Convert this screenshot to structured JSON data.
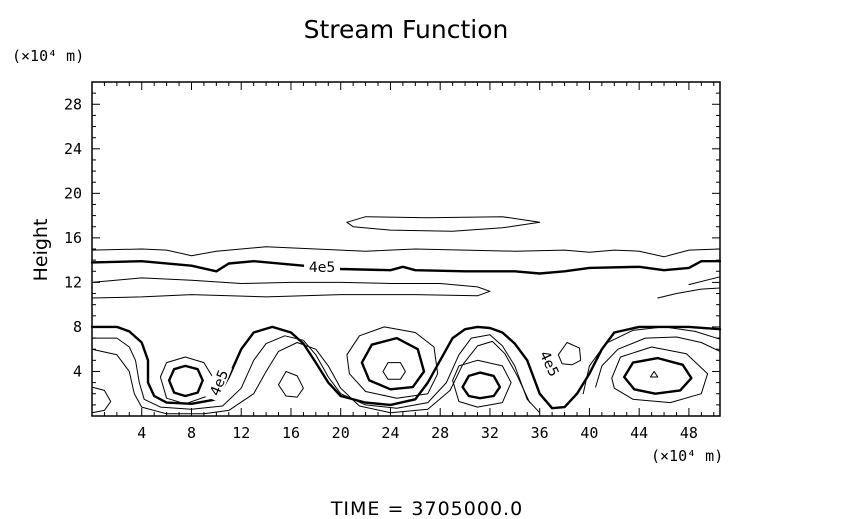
{
  "chart_data": {
    "type": "contour",
    "title": "Stream Function",
    "ylabel": "Height",
    "xlabel": "",
    "x_unit_label": "(×10⁴ m)",
    "y_unit_label": "(×10⁴ m)",
    "xlim": [
      0,
      50.5
    ],
    "ylim": [
      0,
      30
    ],
    "x_ticks": [
      4,
      8,
      12,
      16,
      20,
      24,
      28,
      32,
      36,
      40,
      44,
      48
    ],
    "y_ticks": [
      4,
      8,
      12,
      16,
      20,
      24,
      28
    ],
    "x_minor_step": 1,
    "y_minor_step": 1,
    "contour_label": "4e5",
    "footer": "TIME  =  3705000.0",
    "lines": [
      {
        "id": "band-top-15",
        "weight": "thin",
        "points": [
          [
            0,
            14.9
          ],
          [
            4,
            15.0
          ],
          [
            6,
            14.9
          ],
          [
            8,
            14.4
          ],
          [
            10,
            14.8
          ],
          [
            14,
            15.2
          ],
          [
            18,
            15.0
          ],
          [
            22,
            14.8
          ],
          [
            26,
            15.0
          ],
          [
            30,
            14.9
          ],
          [
            34,
            14.8
          ],
          [
            38,
            14.9
          ],
          [
            40,
            14.7
          ],
          [
            42,
            14.9
          ],
          [
            44,
            14.8
          ],
          [
            46,
            14.3
          ],
          [
            48,
            14.9
          ],
          [
            50.5,
            15.0
          ]
        ]
      },
      {
        "id": "bold-13.5",
        "weight": "bold",
        "points": [
          [
            0,
            13.8
          ],
          [
            4,
            13.9
          ],
          [
            8,
            13.5
          ],
          [
            10,
            13.0
          ],
          [
            11,
            13.7
          ],
          [
            13,
            13.9
          ],
          [
            16,
            13.6
          ],
          [
            18,
            13.4
          ],
          [
            20,
            13.2
          ],
          [
            24,
            13.1
          ],
          [
            25,
            13.4
          ],
          [
            26,
            13.1
          ],
          [
            30,
            13.0
          ],
          [
            34,
            13.0
          ],
          [
            36,
            12.8
          ],
          [
            38,
            13.0
          ],
          [
            40,
            13.3
          ],
          [
            44,
            13.4
          ],
          [
            46,
            13.1
          ],
          [
            48,
            13.3
          ],
          [
            49,
            13.9
          ],
          [
            50.5,
            13.9
          ]
        ]
      },
      {
        "id": "band-12",
        "weight": "thin",
        "points": [
          [
            0,
            12.0
          ],
          [
            4,
            12.4
          ],
          [
            8,
            12.2
          ],
          [
            12,
            11.9
          ],
          [
            16,
            12.0
          ],
          [
            20,
            12.0
          ],
          [
            24,
            11.9
          ],
          [
            28,
            11.9
          ],
          [
            31,
            11.6
          ],
          [
            32,
            11.2
          ],
          [
            31,
            10.8
          ],
          [
            26,
            10.9
          ],
          [
            20,
            10.9
          ],
          [
            14,
            10.7
          ],
          [
            8,
            10.9
          ],
          [
            4,
            10.7
          ],
          [
            0,
            10.6
          ]
        ]
      },
      {
        "id": "top-closed-17",
        "weight": "thin",
        "points": [
          [
            20.5,
            17.4
          ],
          [
            22,
            17.9
          ],
          [
            27,
            17.8
          ],
          [
            33,
            17.9
          ],
          [
            36,
            17.4
          ],
          [
            33,
            16.9
          ],
          [
            29,
            16.6
          ],
          [
            24,
            16.7
          ],
          [
            21,
            17.0
          ],
          [
            20.5,
            17.4
          ]
        ]
      },
      {
        "id": "right-small-11",
        "weight": "thin",
        "points": [
          [
            45.5,
            10.6
          ],
          [
            47,
            11.0
          ],
          [
            49,
            11.4
          ],
          [
            50.5,
            11.5
          ]
        ]
      },
      {
        "id": "right-small-12",
        "weight": "thin",
        "points": [
          [
            48,
            11.8
          ],
          [
            50.5,
            12.5
          ]
        ]
      },
      {
        "id": "bold-wave",
        "weight": "bold",
        "points": [
          [
            0,
            8.0
          ],
          [
            2,
            8.0
          ],
          [
            3,
            7.6
          ],
          [
            4,
            6.6
          ],
          [
            4.5,
            5.0
          ],
          [
            4.5,
            3.0
          ],
          [
            5,
            1.8
          ],
          [
            6,
            1.2
          ],
          [
            8,
            1.1
          ],
          [
            10,
            1.5
          ],
          [
            11,
            3.5
          ],
          [
            12,
            6.0
          ],
          [
            13,
            7.5
          ],
          [
            14.5,
            8.0
          ],
          [
            16,
            7.5
          ],
          [
            17,
            6.5
          ],
          [
            18,
            4.8
          ],
          [
            19,
            3.0
          ],
          [
            20,
            1.8
          ],
          [
            22,
            1.2
          ],
          [
            24,
            1.0
          ],
          [
            26,
            1.5
          ],
          [
            27,
            3.0
          ],
          [
            28,
            5.0
          ],
          [
            29,
            7.0
          ],
          [
            30,
            7.8
          ],
          [
            31,
            8.0
          ],
          [
            32,
            7.9
          ],
          [
            33,
            7.5
          ],
          [
            34,
            6.5
          ],
          [
            35,
            5.0
          ],
          [
            36,
            2.0
          ],
          [
            37,
            0.7
          ],
          [
            38,
            0.8
          ],
          [
            39,
            2.0
          ],
          [
            40,
            3.8
          ],
          [
            41,
            6.0
          ],
          [
            42,
            7.5
          ],
          [
            44,
            8.0
          ],
          [
            48,
            8.0
          ],
          [
            50.5,
            7.8
          ]
        ]
      },
      {
        "id": "thin-wave-a",
        "weight": "thin",
        "points": [
          [
            0,
            7.0
          ],
          [
            2,
            7.0
          ],
          [
            3,
            6.2
          ],
          [
            3.5,
            5.0
          ],
          [
            3.8,
            3.0
          ],
          [
            4.2,
            1.5
          ],
          [
            5.5,
            0.8
          ],
          [
            8,
            0.6
          ],
          [
            10.5,
            0.9
          ],
          [
            12,
            2.5
          ],
          [
            13,
            5.0
          ],
          [
            14,
            6.5
          ],
          [
            15.5,
            7.2
          ],
          [
            17,
            6.8
          ],
          [
            18,
            5.5
          ],
          [
            19,
            3.5
          ],
          [
            20,
            2.0
          ],
          [
            22,
            1.0
          ],
          [
            24.5,
            0.7
          ],
          [
            27,
            1.2
          ],
          [
            28.5,
            3.0
          ],
          [
            29.5,
            5.5
          ],
          [
            30.5,
            7.0
          ],
          [
            32,
            7.3
          ],
          [
            33,
            6.3
          ],
          [
            34,
            4.5
          ],
          [
            35,
            1.5
          ],
          [
            36,
            0.3
          ]
        ]
      },
      {
        "id": "thin-wave-b",
        "weight": "thin",
        "points": [
          [
            0,
            6.0
          ],
          [
            2,
            5.5
          ],
          [
            3,
            4.0
          ],
          [
            3.4,
            2.0
          ],
          [
            4,
            0.8
          ],
          [
            6,
            0.2
          ],
          [
            9,
            0.2
          ],
          [
            11,
            0.5
          ],
          [
            13,
            2.0
          ],
          [
            14,
            4.0
          ],
          [
            15,
            5.8
          ],
          [
            16.5,
            6.6
          ],
          [
            18,
            6.0
          ],
          [
            19,
            4.5
          ],
          [
            20,
            2.5
          ],
          [
            21.5,
            0.9
          ],
          [
            24,
            0.3
          ],
          [
            27,
            0.6
          ],
          [
            28.8,
            2.3
          ],
          [
            29.8,
            4.6
          ],
          [
            31,
            6.3
          ],
          [
            32.2,
            6.7
          ],
          [
            33.2,
            5.6
          ],
          [
            34.2,
            3.6
          ],
          [
            35.2,
            1.2
          ]
        ]
      },
      {
        "id": "left-partial",
        "weight": "thin",
        "points": [
          [
            0,
            2.6
          ],
          [
            1,
            2.3
          ],
          [
            1.5,
            1.3
          ],
          [
            1,
            0.5
          ],
          [
            0,
            0.3
          ]
        ]
      },
      {
        "id": "eddy1-outer",
        "weight": "thin",
        "points": [
          [
            5.5,
            3.5
          ],
          [
            6,
            4.8
          ],
          [
            7.5,
            5.3
          ],
          [
            9,
            4.8
          ],
          [
            9.7,
            3.5
          ],
          [
            9.3,
            1.8
          ],
          [
            7.5,
            1.1
          ],
          [
            6,
            1.6
          ],
          [
            5.5,
            3.5
          ]
        ]
      },
      {
        "id": "eddy1-bold",
        "weight": "bold",
        "points": [
          [
            6.2,
            3.2
          ],
          [
            6.6,
            4.2
          ],
          [
            7.5,
            4.5
          ],
          [
            8.5,
            4.2
          ],
          [
            8.9,
            3.2
          ],
          [
            8.5,
            2.1
          ],
          [
            7.5,
            1.8
          ],
          [
            6.6,
            2.1
          ],
          [
            6.2,
            3.2
          ]
        ]
      },
      {
        "id": "eddy-small-16",
        "weight": "thin",
        "points": [
          [
            15,
            2.8
          ],
          [
            15.6,
            4.0
          ],
          [
            16.5,
            3.6
          ],
          [
            17,
            2.5
          ],
          [
            16.5,
            1.7
          ],
          [
            15.6,
            1.8
          ],
          [
            15,
            2.8
          ]
        ]
      },
      {
        "id": "eddy2-outer",
        "weight": "thin",
        "points": [
          [
            20.5,
            5.5
          ],
          [
            21.5,
            7.2
          ],
          [
            23.5,
            8.0
          ],
          [
            26,
            7.5
          ],
          [
            27.5,
            6.2
          ],
          [
            27.8,
            3.8
          ],
          [
            27,
            2.0
          ],
          [
            24.5,
            1.6
          ],
          [
            22,
            2.2
          ],
          [
            20.7,
            3.8
          ],
          [
            20.5,
            5.5
          ]
        ]
      },
      {
        "id": "eddy2-bold",
        "weight": "bold",
        "points": [
          [
            21.7,
            4.8
          ],
          [
            22.5,
            6.4
          ],
          [
            24.5,
            7.0
          ],
          [
            26.2,
            6.0
          ],
          [
            26.7,
            4.0
          ],
          [
            25.8,
            2.6
          ],
          [
            24,
            2.4
          ],
          [
            22.3,
            3.2
          ],
          [
            21.7,
            4.8
          ]
        ]
      },
      {
        "id": "eddy2-inner",
        "weight": "thin",
        "points": [
          [
            23.4,
            4.0
          ],
          [
            23.8,
            4.8
          ],
          [
            24.8,
            4.8
          ],
          [
            25.2,
            4.0
          ],
          [
            24.8,
            3.3
          ],
          [
            23.8,
            3.3
          ],
          [
            23.4,
            4.0
          ]
        ]
      },
      {
        "id": "eddy3-outer",
        "weight": "thin",
        "points": [
          [
            29,
            3.2
          ],
          [
            29.5,
            4.5
          ],
          [
            31,
            5.0
          ],
          [
            33,
            4.5
          ],
          [
            33.7,
            3.0
          ],
          [
            33,
            1.2
          ],
          [
            31,
            0.8
          ],
          [
            29.5,
            1.3
          ],
          [
            29,
            3.2
          ]
        ]
      },
      {
        "id": "eddy3-bold",
        "weight": "bold",
        "points": [
          [
            29.8,
            2.6
          ],
          [
            30.3,
            3.6
          ],
          [
            31.2,
            3.9
          ],
          [
            32.3,
            3.6
          ],
          [
            32.8,
            2.6
          ],
          [
            32.3,
            1.8
          ],
          [
            31.2,
            1.6
          ],
          [
            30.3,
            1.8
          ],
          [
            29.8,
            2.6
          ]
        ]
      },
      {
        "id": "eddy-small-38",
        "weight": "thin",
        "points": [
          [
            37.5,
            5.5
          ],
          [
            38.2,
            6.6
          ],
          [
            39.2,
            6.1
          ],
          [
            39.3,
            5.0
          ],
          [
            38.6,
            4.6
          ],
          [
            37.8,
            4.7
          ],
          [
            37.5,
            5.5
          ]
        ]
      },
      {
        "id": "right-outer-1",
        "weight": "thin",
        "points": [
          [
            39.5,
            2.0
          ],
          [
            40,
            4.5
          ],
          [
            41.3,
            6.5
          ],
          [
            43.5,
            7.7
          ],
          [
            46,
            8.0
          ],
          [
            48.5,
            7.6
          ],
          [
            50.5,
            6.9
          ]
        ]
      },
      {
        "id": "right-outer-2",
        "weight": "thin",
        "points": [
          [
            40.5,
            2.6
          ],
          [
            41,
            4.5
          ],
          [
            42.3,
            6.0
          ],
          [
            44.5,
            7.0
          ],
          [
            47,
            7.1
          ],
          [
            49,
            6.6
          ],
          [
            50.5,
            5.8
          ]
        ]
      },
      {
        "id": "eddy4-outer",
        "weight": "thin",
        "points": [
          [
            41.8,
            3.4
          ],
          [
            42.5,
            5.3
          ],
          [
            45,
            6.2
          ],
          [
            47.8,
            5.6
          ],
          [
            49.5,
            3.8
          ],
          [
            49,
            2.0
          ],
          [
            46.5,
            1.2
          ],
          [
            43.5,
            1.5
          ],
          [
            42,
            2.5
          ],
          [
            41.8,
            3.4
          ]
        ]
      },
      {
        "id": "eddy4-bold",
        "weight": "bold",
        "points": [
          [
            42.8,
            3.5
          ],
          [
            43.5,
            4.8
          ],
          [
            45.5,
            5.2
          ],
          [
            47.5,
            4.6
          ],
          [
            48.2,
            3.4
          ],
          [
            47.3,
            2.3
          ],
          [
            45.3,
            2.0
          ],
          [
            43.6,
            2.4
          ],
          [
            42.8,
            3.5
          ]
        ]
      },
      {
        "id": "eddy4-inner",
        "weight": "thin",
        "points": [
          [
            44.9,
            3.5
          ],
          [
            45.2,
            4.0
          ],
          [
            45.5,
            3.5
          ],
          [
            44.9,
            3.5
          ]
        ]
      }
    ],
    "label_positions": [
      {
        "x": 18.5,
        "y": 13.4,
        "angle": 0
      },
      {
        "x": 36.8,
        "y": 4.7,
        "angle": 65
      },
      {
        "x": 10.2,
        "y": 3.0,
        "angle": -68
      }
    ]
  }
}
